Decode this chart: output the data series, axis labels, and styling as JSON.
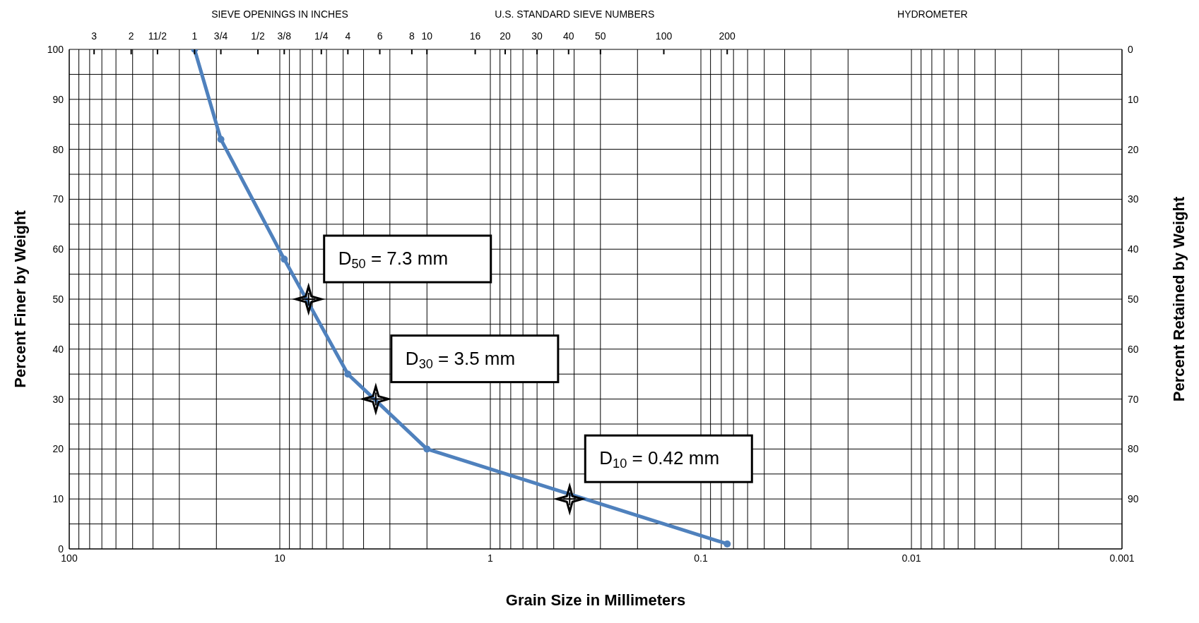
{
  "chart_data": {
    "type": "line",
    "xlabel": "Grain Size in Millimeters",
    "ylabel": "Percent Finer by Weight",
    "y2label": "Percent Retained by Weight",
    "annotations": [
      "SIEVE OPENINGS IN INCHES",
      "U.S. STANDARD SIEVE NUMBERS",
      "HYDROMETER",
      "3",
      "2",
      "11/2",
      "1",
      "3/4",
      "1/2",
      "3/8",
      "1/4",
      "4",
      "6",
      "8",
      "10",
      "16",
      "20",
      "30",
      "40",
      "50",
      "100",
      "200",
      {
        "text": "D$_{50}$ = 7.3 mm",
        "x": 7.3,
        "y": 50
      },
      {
        "text": "D$_{30}$ = 3.5 mm",
        "x": 3.5,
        "y": 30
      },
      {
        "text": "D$_{10}$ = 0.42 mm",
        "x": 0.42,
        "y": 10
      }
    ],
    "log": "x",
    "grid": true,
    "line_style": "solid",
    "xlim": [
      100,
      0.001
    ],
    "xticks": [
      100,
      {
        "value": 90,
        "label": null
      },
      {
        "value": 80,
        "label": null
      },
      {
        "value": 70,
        "label": null
      },
      {
        "value": 60,
        "label": null
      },
      {
        "value": 50,
        "label": null
      },
      {
        "value": 40,
        "label": null
      },
      {
        "value": 30,
        "label": null
      },
      {
        "value": 20,
        "label": null
      },
      10,
      {
        "value": 9,
        "label": null
      },
      {
        "value": 8,
        "label": null
      },
      {
        "value": 7,
        "label": null
      },
      {
        "value": 6,
        "label": null
      },
      {
        "value": 5,
        "label": null
      },
      {
        "value": 4,
        "label": null
      },
      {
        "value": 3,
        "label": null
      },
      {
        "value": 2,
        "label": null
      },
      1,
      {
        "value": 0.9,
        "label": null
      },
      {
        "value": 0.8,
        "label": null
      },
      {
        "value": 0.7,
        "label": null
      },
      {
        "value": 0.6,
        "label": null
      },
      {
        "value": 0.5,
        "label": null
      },
      {
        "value": 0.4,
        "label": null
      },
      {
        "value": 0.3,
        "label": null
      },
      {
        "value": 0.2,
        "label": null
      },
      0.1,
      {
        "value": 0.09,
        "label": null
      },
      {
        "value": 0.08,
        "label": null
      },
      {
        "value": 0.07,
        "label": null
      },
      {
        "value": 0.06,
        "label": null
      },
      {
        "value": 0.05,
        "label": null
      },
      {
        "value": 0.04,
        "label": null
      },
      {
        "value": 0.03,
        "label": null
      },
      {
        "value": 0.02,
        "label": null
      },
      0.01,
      {
        "value": 0.009,
        "label": null
      },
      {
        "value": 0.008,
        "label": null
      },
      {
        "value": 0.007,
        "label": null
      },
      {
        "value": 0.006,
        "label": null
      },
      {
        "value": 0.005,
        "label": null
      },
      {
        "value": 0.004,
        "label": null
      },
      {
        "value": 0.003,
        "label": null
      },
      {
        "value": 0.002,
        "label": null
      },
      0.001
    ],
    "ylim": [
      0,
      100
    ],
    "yticks": [
      0,
      {
        "value": 5,
        "label": null
      },
      10,
      {
        "value": 15,
        "label": null
      },
      20,
      {
        "value": 25,
        "label": null
      },
      30,
      {
        "value": 35,
        "label": null
      },
      40,
      {
        "value": 45,
        "label": null
      },
      50,
      {
        "value": 55,
        "label": null
      },
      60,
      {
        "value": 65,
        "label": null
      },
      70,
      {
        "value": 75,
        "label": null
      },
      80,
      {
        "value": 85,
        "label": null
      },
      90,
      {
        "value": 95,
        "label": null
      },
      100
    ],
    "y2lim": [
      100,
      0
    ],
    "y2ticks": [
      0,
      10,
      20,
      30,
      40,
      50,
      60,
      70,
      80,
      90
    ],
    "series": [
      {
        "type": "line",
        "color": "#4f81bd",
        "marker": "circle",
        "x": [
          25.4,
          19.05,
          9.525,
          4.75,
          2.0,
          0.075
        ],
        "values": [
          100,
          82,
          58,
          35,
          20,
          1
        ]
      },
      {
        "type": "scatter",
        "color": "#000000",
        "marker": "star",
        "x": [
          7.3,
          3.5,
          0.42
        ],
        "values": [
          50,
          30,
          10
        ]
      }
    ]
  }
}
